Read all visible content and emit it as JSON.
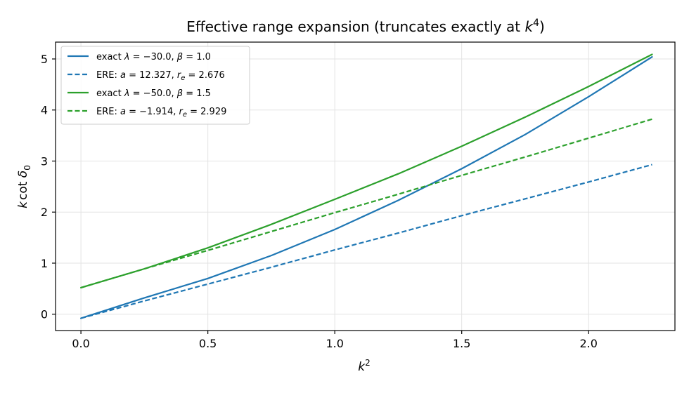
{
  "chart_data": {
    "type": "line",
    "title": "Effective range expansion (truncates exactly at k⁴)",
    "xlabel": "k²",
    "ylabel": "k cot δ₀",
    "xlim": [
      -0.1,
      2.34
    ],
    "ylim": [
      -0.32,
      5.33
    ],
    "xticks": [
      0.0,
      0.5,
      1.0,
      1.5,
      2.0
    ],
    "xtick_labels": [
      "0.0",
      "0.5",
      "1.0",
      "1.5",
      "2.0"
    ],
    "yticks": [
      0,
      1,
      2,
      3,
      4,
      5
    ],
    "ytick_labels": [
      "0",
      "1",
      "2",
      "3",
      "4",
      "5"
    ],
    "grid": true,
    "legend_position": "top-left",
    "x": [
      0.0,
      0.25,
      0.5,
      0.75,
      1.0,
      1.25,
      1.5,
      1.75,
      2.0,
      2.25
    ],
    "series": [
      {
        "name": "exact λ = −30.0, β = 1.0",
        "color": "#1f77b4",
        "dash": "solid",
        "values": [
          -0.08,
          0.32,
          0.7,
          1.15,
          1.66,
          2.23,
          2.85,
          3.52,
          4.26,
          5.04
        ]
      },
      {
        "name": "ERE: a = 12.327, r_e = 2.676",
        "color": "#1f77b4",
        "dash": "dashed",
        "values": [
          -0.08,
          0.26,
          0.59,
          0.92,
          1.26,
          1.59,
          1.93,
          2.26,
          2.59,
          2.93
        ]
      },
      {
        "name": "exact λ = −50.0, β = 1.5",
        "color": "#2ca02c",
        "dash": "solid",
        "values": [
          0.52,
          0.89,
          1.3,
          1.76,
          2.25,
          2.75,
          3.29,
          3.86,
          4.46,
          5.09
        ]
      },
      {
        "name": "ERE: a = −1.914, r_e = 2.929",
        "color": "#2ca02c",
        "dash": "dashed",
        "values": [
          0.52,
          0.89,
          1.25,
          1.62,
          1.99,
          2.35,
          2.72,
          3.08,
          3.45,
          3.82
        ]
      }
    ]
  }
}
